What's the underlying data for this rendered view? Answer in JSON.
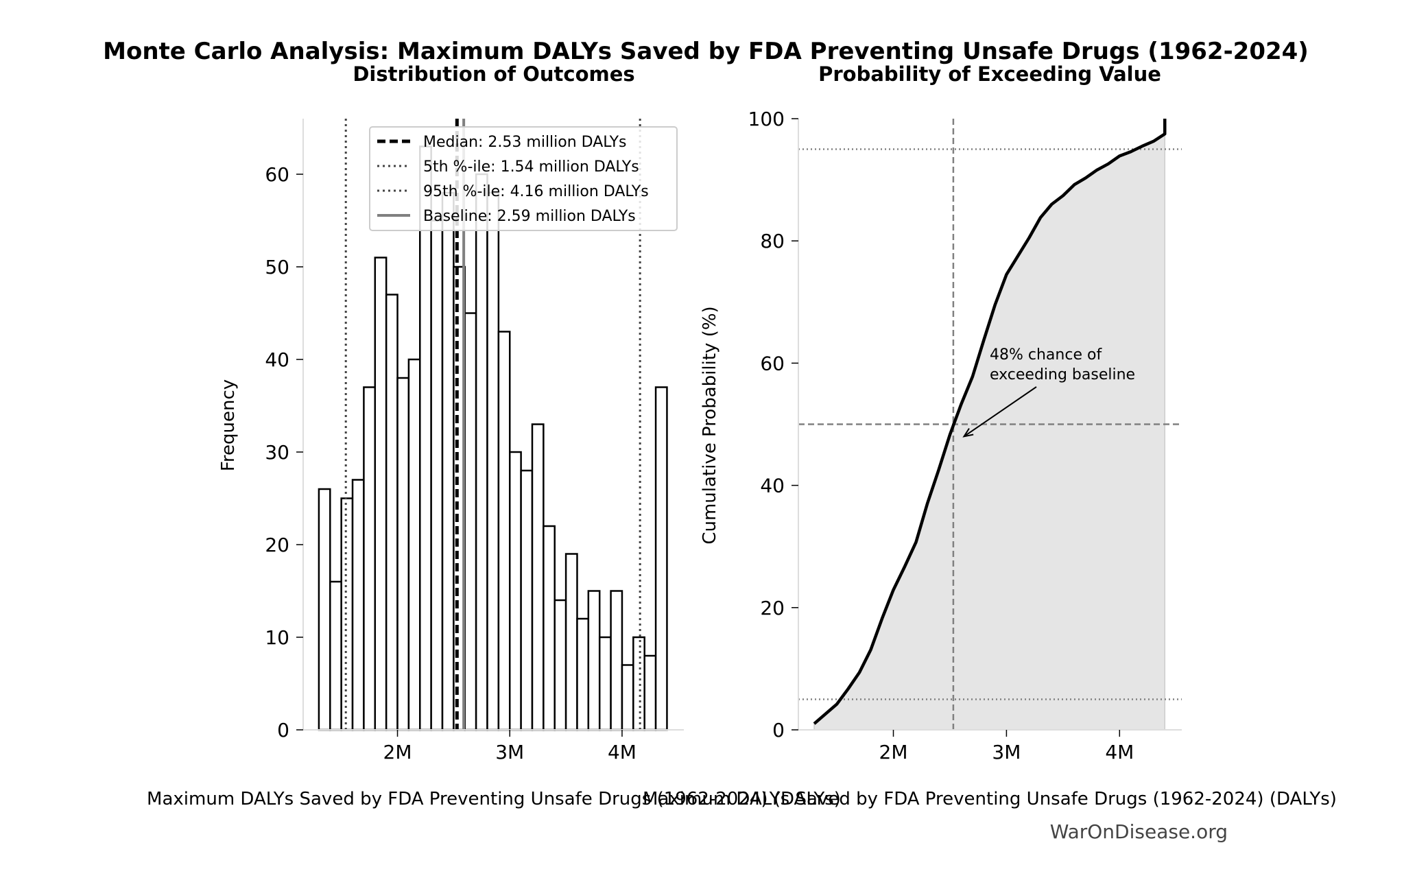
{
  "title": "Monte Carlo Analysis: Maximum DALYs Saved by FDA Preventing Unsafe Drugs (1962-2024)",
  "watermark": "WarOnDisease.org",
  "colors": {
    "bar_edge": "#000000",
    "bar_fill": "#ffffff",
    "cdf_line": "#000000",
    "cdf_fill": "#e5e5e5",
    "baseline": "#808080",
    "percentile": "#444444"
  },
  "chart_data": [
    {
      "type": "bar",
      "title": "Distribution of Outcomes",
      "xlabel": "Maximum DALYs Saved by FDA Preventing Unsafe Drugs (1962-2024) (DALYs)",
      "ylabel": "Frequency",
      "bin_start": 1.3,
      "bin_width": 0.1,
      "bin_unit": "million DALYs",
      "values": [
        26,
        16,
        25,
        27,
        37,
        51,
        47,
        38,
        40,
        63,
        55,
        58,
        50,
        45,
        60,
        58,
        43,
        30,
        28,
        33,
        22,
        14,
        19,
        12,
        15,
        10,
        15,
        7,
        10,
        8,
        37
      ],
      "xlim": [
        1.16,
        4.55
      ],
      "ylim": [
        0,
        66
      ],
      "xticks": [
        {
          "v": 2,
          "label": "2M"
        },
        {
          "v": 3,
          "label": "3M"
        },
        {
          "v": 4,
          "label": "4M"
        }
      ],
      "yticks": [
        {
          "v": 0,
          "label": "0"
        },
        {
          "v": 10,
          "label": "10"
        },
        {
          "v": 20,
          "label": "20"
        },
        {
          "v": 30,
          "label": "30"
        },
        {
          "v": 40,
          "label": "40"
        },
        {
          "v": 50,
          "label": "50"
        },
        {
          "v": 60,
          "label": "60"
        }
      ],
      "grid": false,
      "legend_position": "top-right",
      "reference_lines": [
        {
          "name": "Median: 2.53 million DALYs",
          "x": 2.53,
          "style": "dashed",
          "color": "#000000"
        },
        {
          "name": "5th %-ile: 1.54 million DALYs",
          "x": 1.54,
          "style": "dotted",
          "color": "#444444"
        },
        {
          "name": "95th %-ile: 4.16 million DALYs",
          "x": 4.16,
          "style": "dotted",
          "color": "#444444"
        },
        {
          "name": "Baseline: 2.59 million DALYs",
          "x": 2.59,
          "style": "solid",
          "color": "#808080"
        }
      ]
    },
    {
      "type": "area",
      "title": "Probability of Exceeding Value",
      "xlabel": "Maximum DALYs Saved by FDA Preventing Unsafe Drugs (1962-2024) (DALYs)",
      "ylabel": "Cumulative Probability (%)",
      "x": [
        1.3,
        1.4,
        1.5,
        1.6,
        1.7,
        1.8,
        1.9,
        2.0,
        2.1,
        2.2,
        2.3,
        2.4,
        2.5,
        2.6,
        2.7,
        2.8,
        2.9,
        3.0,
        3.1,
        3.2,
        3.3,
        3.4,
        3.5,
        3.6,
        3.7,
        3.8,
        3.9,
        4.0,
        4.1,
        4.2,
        4.3,
        4.4,
        4.4
      ],
      "y": [
        1,
        2.6,
        4.2,
        6.7,
        9.4,
        13.1,
        18.2,
        22.9,
        26.7,
        30.7,
        37.0,
        42.5,
        48.3,
        53.3,
        57.8,
        63.8,
        69.6,
        74.5,
        77.5,
        80.5,
        83.8,
        86.0,
        87.4,
        89.2,
        90.3,
        91.6,
        92.6,
        93.9,
        94.6,
        95.5,
        96.3,
        97.5,
        100
      ],
      "xlim": [
        1.16,
        4.55
      ],
      "ylim": [
        0,
        100
      ],
      "xticks": [
        {
          "v": 2,
          "label": "2M"
        },
        {
          "v": 3,
          "label": "3M"
        },
        {
          "v": 4,
          "label": "4M"
        }
      ],
      "yticks": [
        {
          "v": 0,
          "label": "0"
        },
        {
          "v": 20,
          "label": "20"
        },
        {
          "v": 40,
          "label": "40"
        },
        {
          "v": 60,
          "label": "60"
        },
        {
          "v": 80,
          "label": "80"
        },
        {
          "v": 100,
          "label": "100"
        }
      ],
      "grid": false,
      "reference_lines": [
        {
          "x": 2.53,
          "style": "dashed",
          "color": "#808080"
        },
        {
          "y": 50,
          "style": "dashed",
          "color": "#808080"
        },
        {
          "y": 5,
          "style": "dotted",
          "color": "#808080"
        },
        {
          "y": 95,
          "style": "dotted",
          "color": "#808080"
        }
      ],
      "annotation": {
        "lines": [
          "48% chance of",
          "exceeding baseline"
        ],
        "points_to": {
          "x": 2.6,
          "y": 48
        }
      }
    }
  ]
}
